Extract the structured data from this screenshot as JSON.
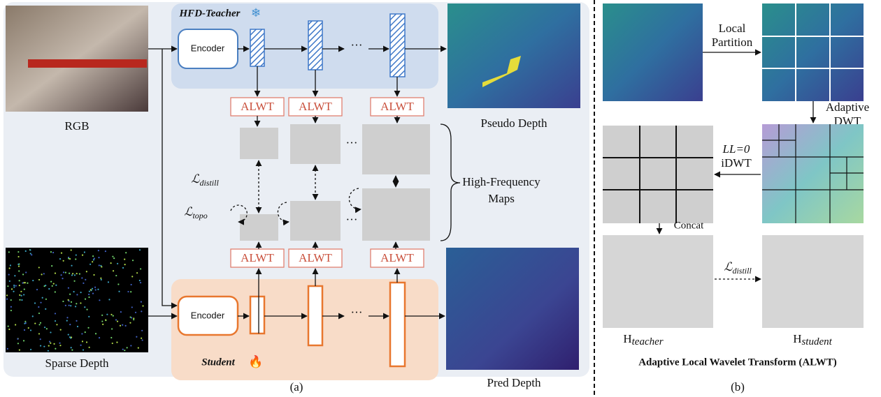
{
  "panel_a": {
    "teacher_label": "HFD-Teacher",
    "teacher_encoder": "Encoder",
    "student_label": "Student",
    "student_encoder": "Encoder",
    "alwt_teacher": [
      "ALWT",
      "ALWT",
      "ALWT"
    ],
    "alwt_student": [
      "ALWT",
      "ALWT",
      "ALWT"
    ],
    "ellipsis": [
      "···",
      "···",
      "···",
      "···"
    ],
    "rgb": "RGB",
    "sparse_depth": "Sparse Depth",
    "pseudo_depth": "Pseudo Depth",
    "pred_depth": "Pred Depth",
    "loss_distill": {
      "symbol": "ℒ",
      "subscript": "distill"
    },
    "loss_topo": {
      "symbol": "ℒ",
      "subscript": "topo"
    },
    "hf_maps": [
      "High-Frequency",
      "Maps"
    ],
    "caption": "(a)"
  },
  "panel_b": {
    "local_partition": [
      "Local",
      "Partition"
    ],
    "adaptive_dwt": [
      "Adaptive",
      "DWT"
    ],
    "ll_zero": "LL=0",
    "idwt": "iDWT",
    "concat": "Concat",
    "loss_distill": {
      "symbol": "ℒ",
      "subscript": "distill"
    },
    "h_teacher": {
      "symbol": "H",
      "subscript": "teacher"
    },
    "h_student": {
      "symbol": "H",
      "subscript": "student"
    },
    "title": "Adaptive Local Wavelet Transform (ALWT)",
    "caption": "(b)"
  }
}
